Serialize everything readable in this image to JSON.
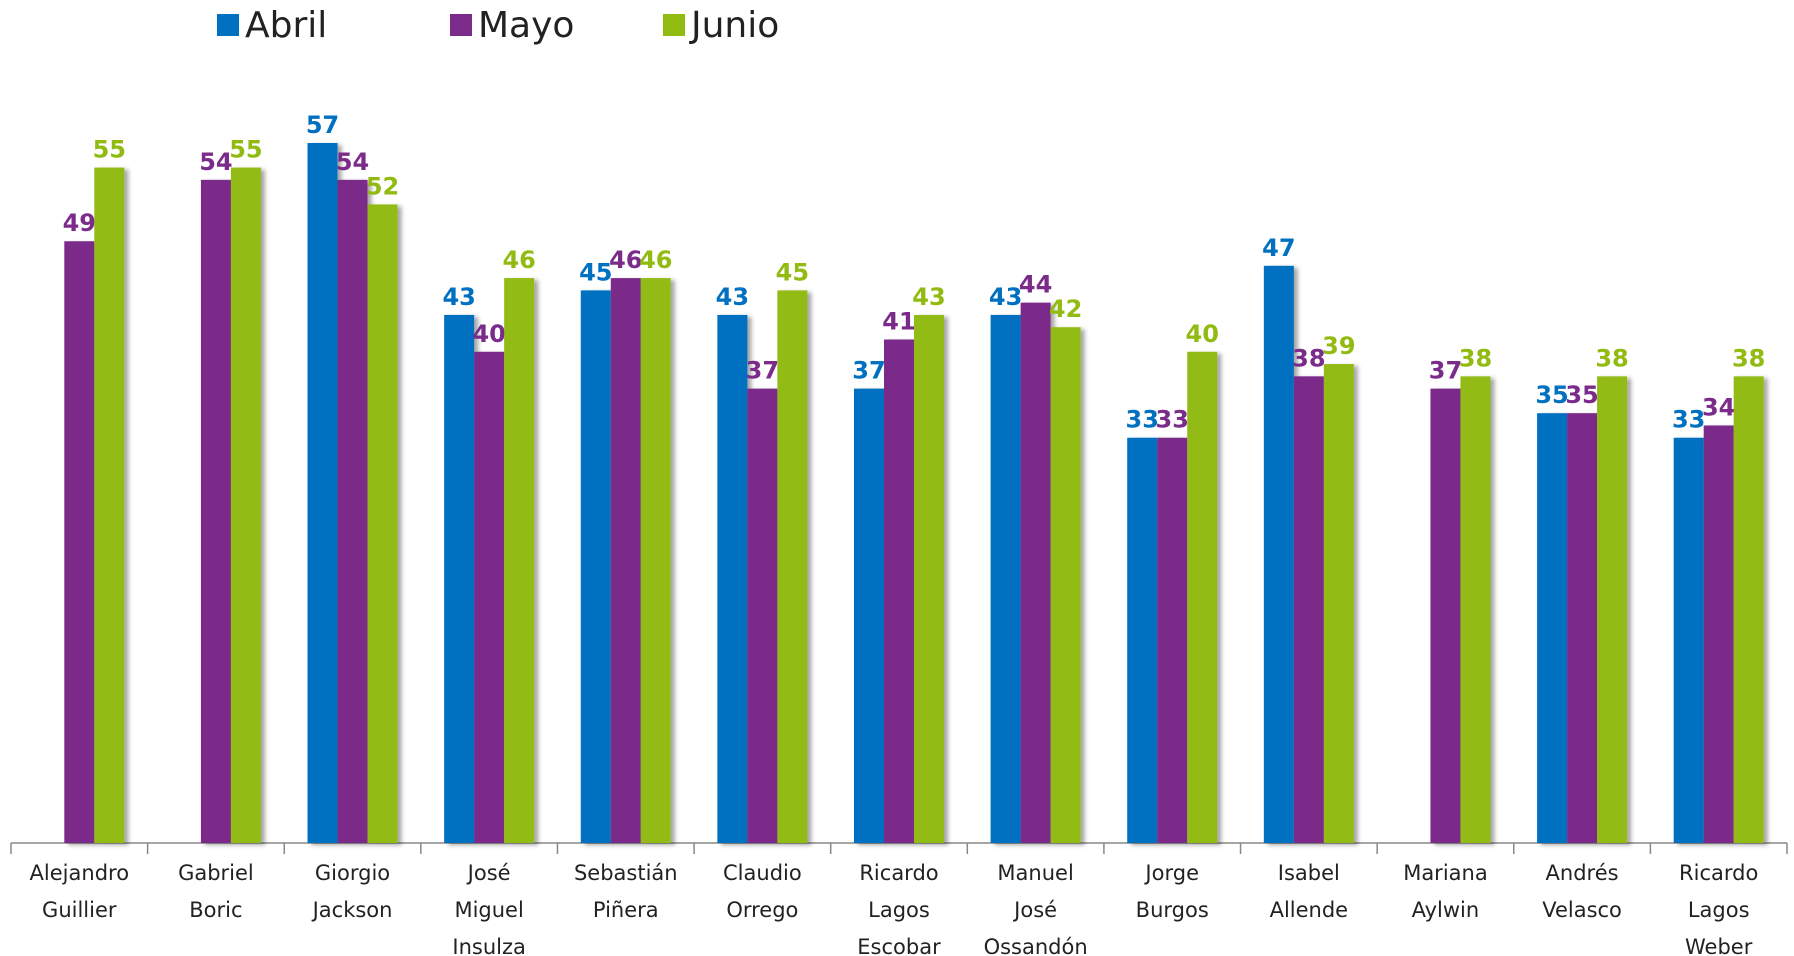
{
  "chart_data": {
    "type": "bar",
    "categories": [
      "Alejandro Guillier",
      "Gabriel Boric",
      "Giorgio Jackson",
      "José Miguel Insulza",
      "Sebastián Piñera",
      "Claudio Orrego",
      "Ricardo Lagos Escobar",
      "Manuel José Ossandón",
      "Jorge Burgos",
      "Isabel Allende",
      "Mariana Aylwin",
      "Andrés Velasco",
      "Ricardo Lagos Weber"
    ],
    "series": [
      {
        "name": "Abril",
        "color": "#0070c0",
        "values": [
          null,
          null,
          57,
          43,
          45,
          43,
          37,
          43,
          33,
          47,
          null,
          35,
          33
        ]
      },
      {
        "name": "Mayo",
        "color": "#7b2c8a",
        "values": [
          49,
          54,
          54,
          40,
          46,
          37,
          41,
          44,
          33,
          38,
          37,
          35,
          34
        ]
      },
      {
        "name": "Junio",
        "color": "#92bb12",
        "values": [
          55,
          55,
          52,
          46,
          46,
          45,
          43,
          42,
          40,
          39,
          38,
          38,
          38
        ]
      }
    ],
    "legend": "top"
  }
}
